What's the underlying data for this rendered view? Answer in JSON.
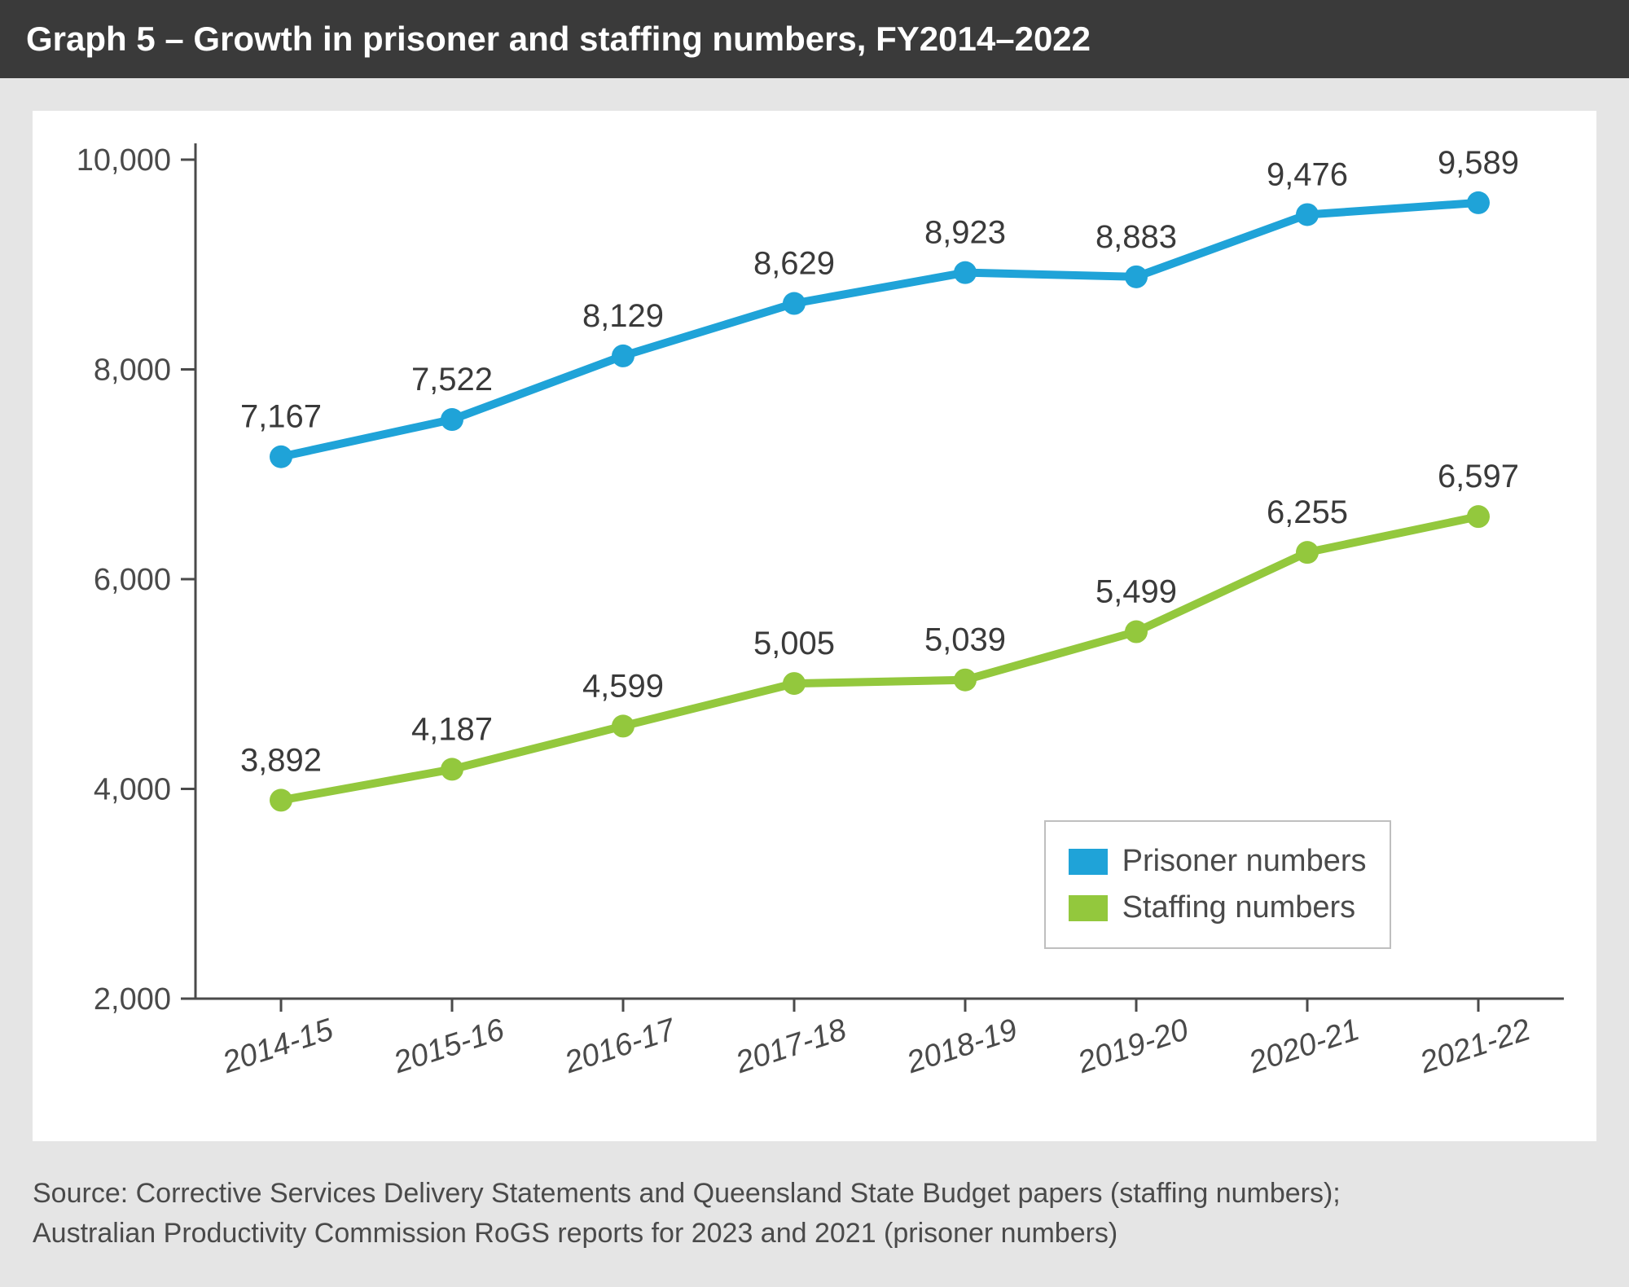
{
  "header": {
    "title": "Graph 5 – Growth in prisoner and staffing numbers, FY2014–2022"
  },
  "chart": {
    "type": "line",
    "background_color": "#ffffff",
    "panel_border_color": "#ffffff",
    "outer_bg": "#e5e5e5",
    "plot": {
      "x_categories": [
        "2014-15",
        "2015-16",
        "2016-17",
        "2017-18",
        "2018-19",
        "2019-20",
        "2020-21",
        "2021-22"
      ],
      "ylim": [
        2000,
        10000
      ],
      "ytick_step": 2000,
      "ytick_labels": [
        "2,000",
        "4,000",
        "6,000",
        "8,000",
        "10,000"
      ],
      "ytick_fontsize": 38,
      "xtick_fontsize": 38,
      "xtick_rotation": -18,
      "axis_color": "#4a4a4a",
      "tick_color": "#4a4a4a",
      "label_color": "#4a4a4a",
      "data_label_fontsize": 40,
      "data_label_color": "#3a3a3a",
      "series": [
        {
          "name": "Prisoner numbers",
          "values": [
            7167,
            7522,
            8129,
            8629,
            8923,
            8883,
            9476,
            9589
          ],
          "value_labels": [
            "7,167",
            "7,522",
            "8,129",
            "8,629",
            "8,923",
            "8,883",
            "9,476",
            "9,589"
          ],
          "color": "#1fa3d8",
          "line_width": 10,
          "marker": "circle",
          "marker_size": 14
        },
        {
          "name": "Staffing numbers",
          "values": [
            3892,
            4187,
            4599,
            5005,
            5039,
            5499,
            6255,
            6597
          ],
          "value_labels": [
            "3,892",
            "4,187",
            "4,599",
            "5,005",
            "5,039",
            "5,499",
            "6,255",
            "6,597"
          ],
          "color": "#93c83d",
          "line_width": 10,
          "marker": "circle",
          "marker_size": 14
        }
      ],
      "legend": {
        "position": "bottom-right-inner",
        "border_color": "#bfbfbf",
        "items": [
          {
            "label": "Prisoner numbers",
            "swatch": "#1fa3d8"
          },
          {
            "label": "Staffing numbers",
            "swatch": "#93c83d"
          }
        ]
      }
    }
  },
  "source": {
    "line1": "Source: Corrective Services Delivery Statements and Queensland State Budget papers (staffing numbers);",
    "line2": "Australian Productivity Commission RoGS reports for 2023 and 2021 (prisoner numbers)"
  }
}
